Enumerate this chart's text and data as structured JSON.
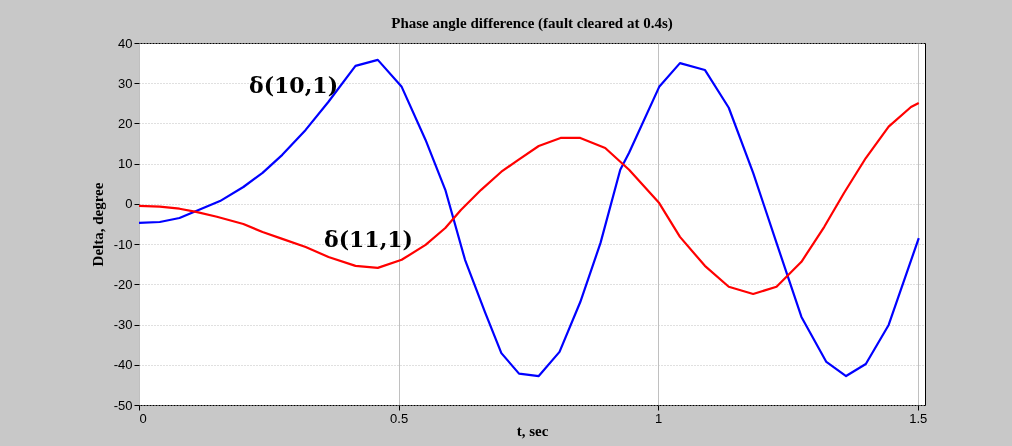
{
  "chart_data": {
    "type": "line",
    "title": "Phase angle difference (fault cleared at 0.4s)",
    "xlabel": "t, sec",
    "ylabel": "Delta, degree",
    "xlim": [
      0,
      1.514
    ],
    "xticks": [
      0,
      0.5,
      1,
      1.5
    ],
    "ylim": [
      -50,
      40
    ],
    "yticks": [
      -50,
      -40,
      -30,
      -20,
      -10,
      0,
      10,
      20,
      30,
      40
    ],
    "grid": true,
    "legend": false,
    "line_style": "solid",
    "marker": "none",
    "series": [
      {
        "name": "δ(10,1)",
        "color": "#0000ff",
        "x": [
          0,
          0.04,
          0.078,
          0.156,
          0.201,
          0.238,
          0.276,
          0.321,
          0.365,
          0.417,
          0.46,
          0.506,
          0.552,
          0.59,
          0.628,
          0.667,
          0.698,
          0.732,
          0.77,
          0.81,
          0.85,
          0.889,
          0.927,
          0.944,
          1.002,
          1.042,
          1.09,
          1.136,
          1.183,
          1.228,
          1.276,
          1.324,
          1.362,
          1.4,
          1.444,
          1.502
        ],
        "values": [
          -4.7,
          -4.5,
          -3.5,
          0.7,
          4.2,
          7.7,
          12.2,
          18.4,
          25.4,
          34.3,
          35.8,
          29.1,
          15.9,
          3.5,
          -13.9,
          -27.1,
          -37.1,
          -42.2,
          -42.8,
          -36.8,
          -24.4,
          -9.7,
          8.5,
          12.7,
          29.1,
          35,
          33.3,
          23.9,
          7.7,
          -9.7,
          -28.1,
          -39.3,
          -42.8,
          -39.8,
          -30.1,
          -8.5
        ]
      },
      {
        "name": "δ(11,1)",
        "color": "#ff0000",
        "x": [
          0,
          0.04,
          0.078,
          0.11,
          0.15,
          0.201,
          0.238,
          0.276,
          0.321,
          0.365,
          0.417,
          0.46,
          0.506,
          0.552,
          0.59,
          0.62,
          0.659,
          0.698,
          0.73,
          0.77,
          0.812,
          0.85,
          0.898,
          0.944,
          1.002,
          1.042,
          1.09,
          1.136,
          1.183,
          1.228,
          1.276,
          1.32,
          1.358,
          1.4,
          1.444,
          1.487,
          1.502
        ],
        "values": [
          -0.5,
          -0.7,
          -1.2,
          -2,
          -3.2,
          -5,
          -7,
          -8.7,
          -10.7,
          -13.2,
          -15.4,
          -15.9,
          -13.9,
          -10.2,
          -6,
          -1.5,
          3.5,
          8,
          10.9,
          14.4,
          16.4,
          16.4,
          13.9,
          8.5,
          0.2,
          -8.2,
          -15.4,
          -20.6,
          -22.4,
          -20.6,
          -14.4,
          -5.7,
          2.7,
          11.4,
          19.2,
          24.1,
          25.1
        ]
      }
    ]
  }
}
